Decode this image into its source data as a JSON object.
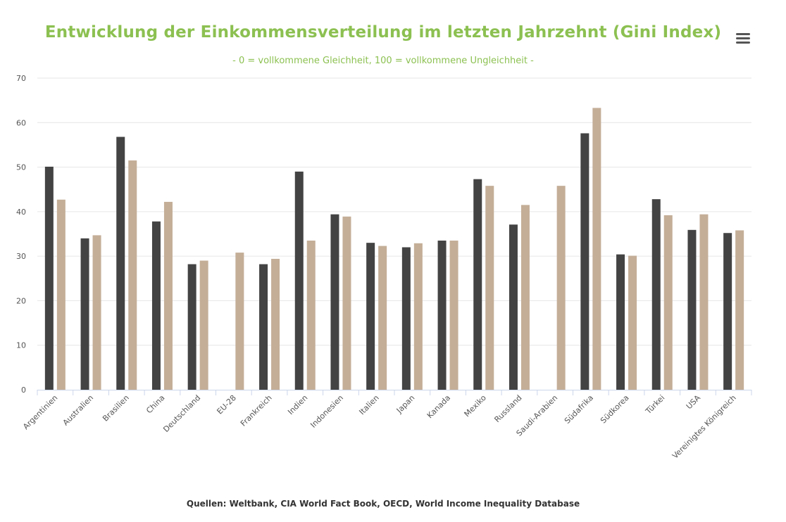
{
  "chart_data": {
    "type": "bar",
    "title": "Entwicklung der Einkommensverteilung im letzten Jahrzehnt (Gini Index)",
    "subtitle": "- 0 = vollkommene Gleichheit, 100 = vollkommene Ungleichheit -",
    "source": "Quellen: Weltbank, CIA World Fact Book, OECD, World Income Inequality Database",
    "categories": [
      "Argentinien",
      "Australien",
      "Brasilien",
      "China",
      "Deutschland",
      "EU-28",
      "Frankreich",
      "Indien",
      "Indonesien",
      "Italien",
      "Japan",
      "Kanada",
      "Mexiko",
      "Russland",
      "Saudi-Arabien",
      "Südafrika",
      "Südkorea",
      "Türkei",
      "USA",
      "Vereinigtes Königreich"
    ],
    "series": [
      {
        "color": "#434343",
        "values": [
          50.1,
          34.0,
          56.8,
          37.8,
          28.2,
          null,
          28.2,
          49.0,
          39.4,
          33.0,
          32.0,
          33.5,
          47.3,
          37.1,
          null,
          57.6,
          30.4,
          42.8,
          35.9,
          35.2
        ]
      },
      {
        "color": "#c4ae97",
        "values": [
          42.7,
          34.7,
          51.5,
          42.2,
          29.0,
          30.8,
          29.4,
          33.5,
          38.9,
          32.3,
          32.9,
          33.5,
          45.8,
          41.5,
          45.8,
          63.3,
          30.1,
          39.2,
          39.4,
          35.8
        ]
      }
    ],
    "ylim": [
      0,
      70
    ],
    "yticks": [
      0,
      10,
      20,
      30,
      40,
      50,
      60,
      70
    ],
    "grid": true,
    "legend": "none"
  },
  "menu_icon": "hamburger-menu-icon"
}
